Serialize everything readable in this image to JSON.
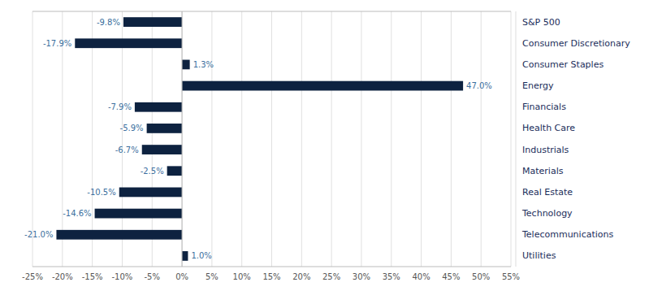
{
  "chart_data": {
    "type": "bar",
    "orientation": "horizontal",
    "categories": [
      "S&P 500",
      "Consumer Discretionary",
      "Consumer Staples",
      "Energy",
      "Financials",
      "Health Care",
      "Industrials",
      "Materials",
      "Real Estate",
      "Technology",
      "Telecommunications",
      "Utilities"
    ],
    "values": [
      -9.8,
      -17.9,
      1.3,
      47.0,
      -7.9,
      -5.9,
      -6.7,
      -2.5,
      -10.5,
      -14.6,
      -21.0,
      1.0
    ],
    "value_labels": [
      "-9.8%",
      "-17.9%",
      "1.3%",
      "47.0%",
      "-7.9%",
      "-5.9%",
      "-6.7%",
      "-2.5%",
      "-10.5%",
      "-14.6%",
      "-21.0%",
      "1.0%"
    ],
    "data_labels": true,
    "color": "#0d2240",
    "xlim": [
      -25,
      55
    ],
    "xticks": [
      {
        "value": -25,
        "label": "-25%"
      },
      {
        "value": -20,
        "label": "-20%"
      },
      {
        "value": -15,
        "label": "-15%"
      },
      {
        "value": -10,
        "label": "-10%"
      },
      {
        "value": -5,
        "label": "-5%"
      },
      {
        "value": 0,
        "label": "0%"
      },
      {
        "value": 5,
        "label": "5%"
      },
      {
        "value": 10,
        "label": "10%"
      },
      {
        "value": 15,
        "label": "15%"
      },
      {
        "value": 20,
        "label": "20%"
      },
      {
        "value": 25,
        "label": "25%"
      },
      {
        "value": 30,
        "label": "30%"
      },
      {
        "value": 35,
        "label": "35%"
      },
      {
        "value": 40,
        "label": "40%"
      },
      {
        "value": 45,
        "label": "45%"
      },
      {
        "value": 50,
        "label": "50%"
      },
      {
        "value": 55,
        "label": "55%"
      }
    ],
    "grid": true
  }
}
